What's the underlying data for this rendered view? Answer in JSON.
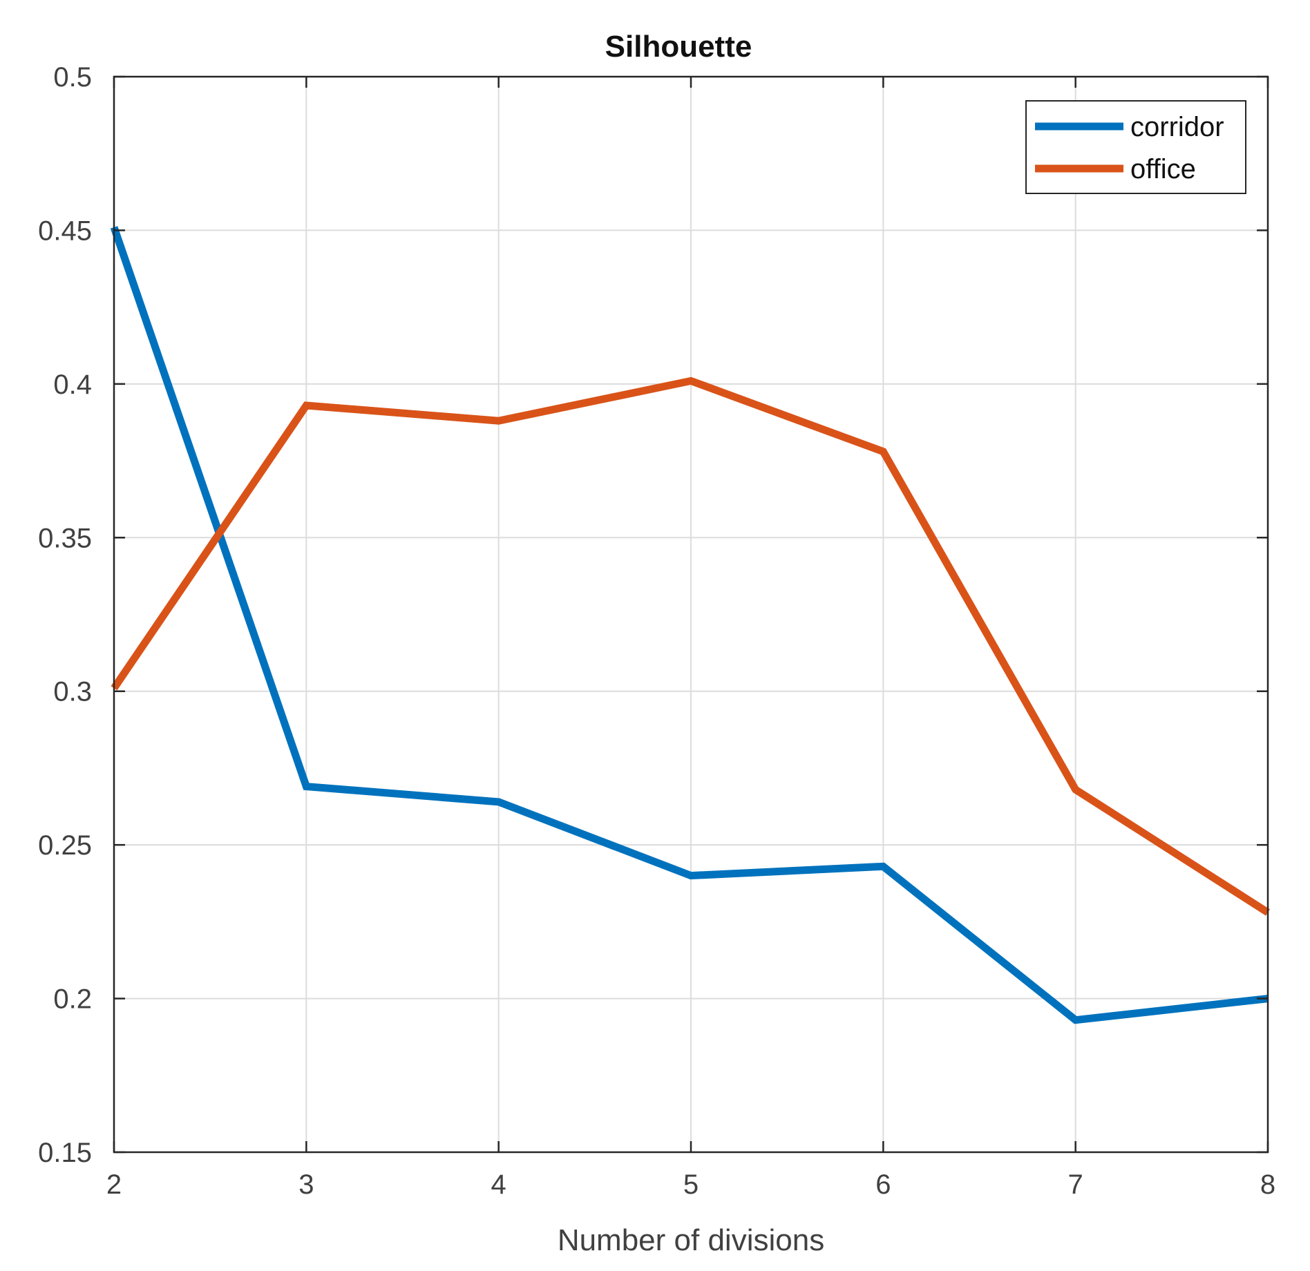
{
  "chart_data": {
    "type": "line",
    "title": "Silhouette",
    "xlabel": "Number of divisions",
    "ylabel": "",
    "x": [
      2,
      3,
      4,
      5,
      6,
      7,
      8
    ],
    "xlim": [
      2,
      8
    ],
    "ylim": [
      0.15,
      0.5
    ],
    "xticks": [
      "2",
      "3",
      "4",
      "5",
      "6",
      "7",
      "8"
    ],
    "yticks": [
      "0.15",
      "0.2",
      "0.25",
      "0.3",
      "0.35",
      "0.4",
      "0.45",
      "0.5"
    ],
    "ytick_values": [
      0.15,
      0.2,
      0.25,
      0.3,
      0.35,
      0.4,
      0.45,
      0.5
    ],
    "grid": true,
    "legend_position": "top-right",
    "series": [
      {
        "name": "corridor",
        "color": "#0072BD",
        "values": [
          0.451,
          0.269,
          0.264,
          0.24,
          0.243,
          0.193,
          0.2
        ]
      },
      {
        "name": "office",
        "color": "#D95319",
        "values": [
          0.301,
          0.393,
          0.388,
          0.401,
          0.378,
          0.268,
          0.228
        ]
      }
    ]
  }
}
